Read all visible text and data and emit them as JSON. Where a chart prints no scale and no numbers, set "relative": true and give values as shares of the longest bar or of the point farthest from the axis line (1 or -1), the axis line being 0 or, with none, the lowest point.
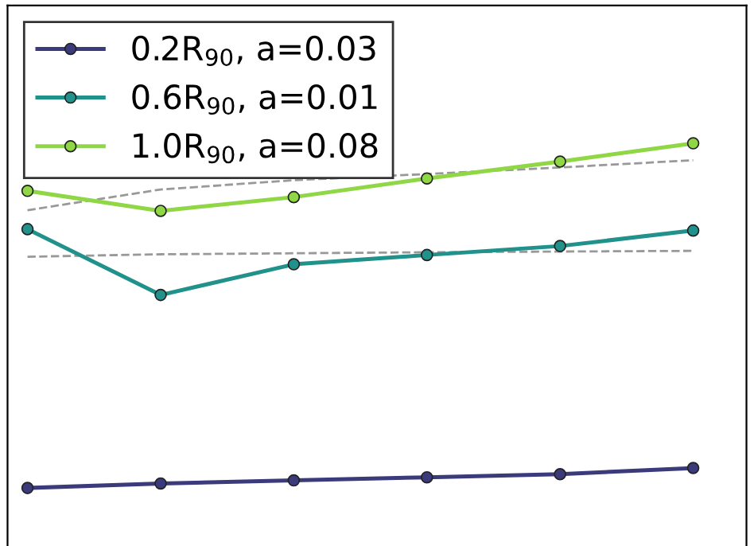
{
  "chart_data": {
    "type": "line",
    "relative": true,
    "categories": [
      null,
      null,
      null,
      null,
      null,
      null
    ],
    "grid": false,
    "legend": "top left",
    "marker": "circle",
    "line_style": "solid",
    "series": [
      {
        "name": "0.2R$_{90}$, a=0.03",
        "color": "#3b3a7a",
        "values": [
          0,
          0.013,
          0.022,
          0.031,
          0.04,
          0.058
        ]
      },
      {
        "name": "0.6R$_{90}$, a=0.01",
        "color": "#21918c",
        "values": [
          0.751,
          0.56,
          0.649,
          0.676,
          0.702,
          0.747
        ]
      },
      {
        "name": "1.0R$_{90}$, a=0.08",
        "color": "#8fd744",
        "values": [
          0.862,
          0.804,
          0.844,
          0.898,
          0.947,
          1.0
        ]
      },
      {
        "type": "line",
        "color": "#999999",
        "line_style": "dashed",
        "marker": "none",
        "values": [
          0.671,
          0.678,
          0.681,
          0.684,
          0.686,
          0.688
        ]
      },
      {
        "type": "line",
        "color": "#999999",
        "line_style": "dashed",
        "marker": "none",
        "values": [
          0.806,
          0.866,
          0.893,
          0.911,
          0.93,
          0.951
        ]
      }
    ]
  }
}
